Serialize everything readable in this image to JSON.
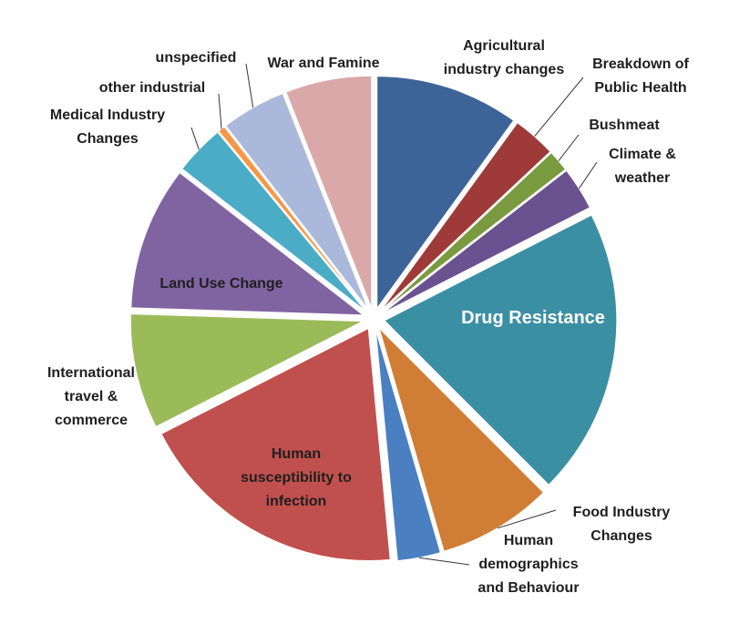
{
  "chart_data": {
    "type": "pie",
    "categories": [
      "Agricultural industry changes",
      "Breakdown of Public Health",
      "Bushmeat",
      "Climate & weather",
      "Drug Resistance",
      "Food Industry Changes",
      "Human demographics and Behaviour",
      "Human susceptibility to infection",
      "International travel & commerce",
      "Land Use Change",
      "Medical Industry Changes",
      "other industrial",
      "unspecified",
      "War and Famine"
    ],
    "values": [
      10,
      3,
      1.5,
      3,
      20,
      8,
      3,
      19,
      8,
      10,
      3.5,
      0.5,
      4.5,
      6
    ],
    "colors": [
      "#3d6499",
      "#9e3b38",
      "#7a9a3f",
      "#6a5290",
      "#3b8fa3",
      "#d07e35",
      "#4a7fc1",
      "#c0504d",
      "#9bbb59",
      "#8064a2",
      "#4bacc6",
      "#f79646",
      "#aab9db",
      "#dba8a9"
    ]
  }
}
